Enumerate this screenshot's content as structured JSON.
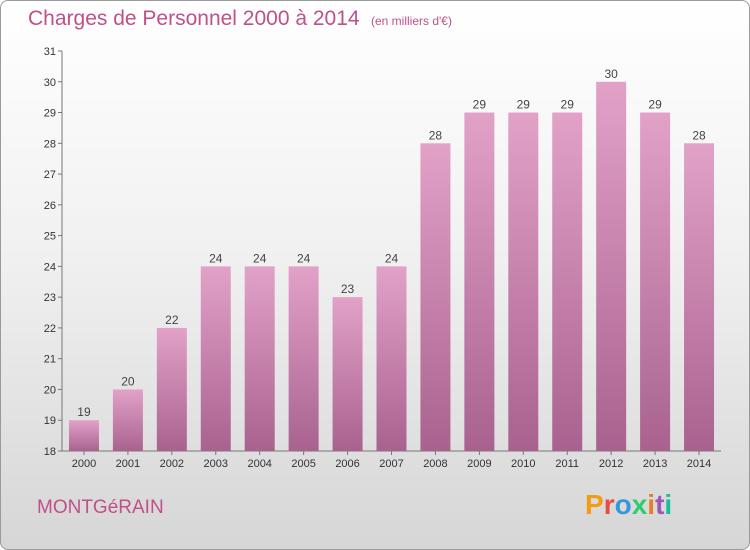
{
  "header": {
    "title": "Charges de Personnel 2000 à 2014",
    "subtitle": "(en milliers d'€)"
  },
  "footer": {
    "place": "MONTGéRAIN",
    "logo": "Proxiti",
    "logo_colors": [
      "#f39c12",
      "#e74c3c",
      "#3498db",
      "#2ecc71",
      "#e67e22",
      "#9b59b6",
      "#1abc9c"
    ]
  },
  "colors": {
    "bar_top": "#e2a2c8",
    "bar_bottom": "#a9628f",
    "text_accent": "#c0508a"
  },
  "chart_data": {
    "type": "bar",
    "title": "Charges de Personnel 2000 à 2014",
    "subtitle": "(en milliers d'€)",
    "categories": [
      "2000",
      "2001",
      "2002",
      "2003",
      "2004",
      "2005",
      "2006",
      "2007",
      "2008",
      "2009",
      "2010",
      "2011",
      "2012",
      "2013",
      "2014"
    ],
    "values": [
      19,
      20,
      22,
      24,
      24,
      24,
      23,
      24,
      28,
      29,
      29,
      29,
      30,
      29,
      28
    ],
    "data_labels": [
      "19",
      "20",
      "22",
      "24",
      "24",
      "24",
      "23",
      "24",
      "28",
      "29",
      "29",
      "29",
      "30",
      "29",
      "28"
    ],
    "yticks": [
      18,
      19,
      20,
      21,
      22,
      23,
      24,
      25,
      26,
      27,
      28,
      29,
      30,
      31
    ],
    "ylim": [
      18,
      31
    ],
    "grid": false,
    "legend": "none"
  }
}
